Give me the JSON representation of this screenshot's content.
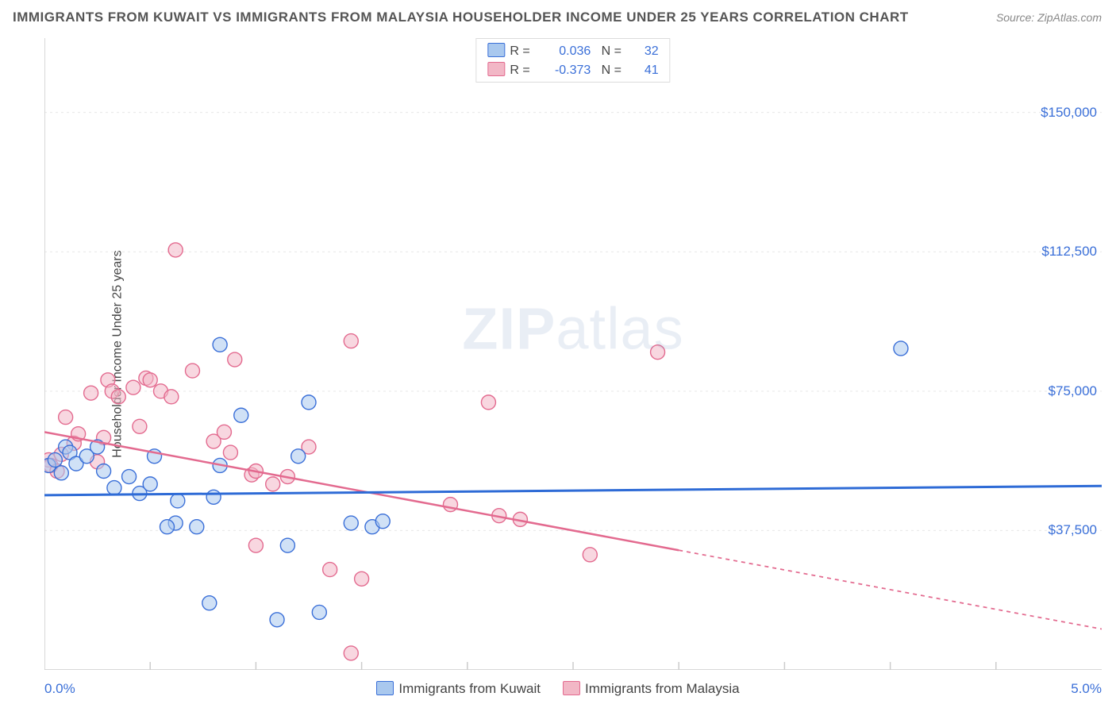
{
  "title": "IMMIGRANTS FROM KUWAIT VS IMMIGRANTS FROM MALAYSIA HOUSEHOLDER INCOME UNDER 25 YEARS CORRELATION CHART",
  "source": "Source: ZipAtlas.com",
  "ylabel": "Householder Income Under 25 years",
  "watermark_zip": "ZIP",
  "watermark_atlas": "atlas",
  "chart": {
    "type": "scatter",
    "background_color": "#ffffff",
    "grid_color": "#e7e7e7",
    "axis_color": "#cccccc",
    "xlim": [
      0.0,
      5.0
    ],
    "ylim": [
      0,
      170000
    ],
    "xtick_label_left": "0.0%",
    "xtick_label_right": "5.0%",
    "xticks_minor": [
      0.5,
      1.0,
      1.5,
      2.0,
      2.5,
      3.0,
      3.5,
      4.0,
      4.5
    ],
    "yticks": [
      {
        "v": 37500,
        "label": "$37,500"
      },
      {
        "v": 75000,
        "label": "$75,000"
      },
      {
        "v": 112500,
        "label": "$112,500"
      },
      {
        "v": 150000,
        "label": "$150,000"
      }
    ],
    "series_a": {
      "name": "Immigrants from Kuwait",
      "fill": "#a9c8ee",
      "stroke": "#3a6fd8",
      "fill_opacity": 0.55,
      "marker_r": 9,
      "R": "0.036",
      "N": "32",
      "trend": {
        "y_at_x0": 47000,
        "y_at_x5": 49500,
        "color": "#2e6bd6",
        "width": 3,
        "solid_to_x": 5.0
      },
      "points": [
        [
          0.02,
          55000
        ],
        [
          0.05,
          56500
        ],
        [
          0.08,
          53000
        ],
        [
          0.1,
          60000
        ],
        [
          0.12,
          58500
        ],
        [
          0.15,
          55500
        ],
        [
          0.2,
          57500
        ],
        [
          0.25,
          60000
        ],
        [
          0.28,
          53500
        ],
        [
          0.33,
          49000
        ],
        [
          0.4,
          52000
        ],
        [
          0.45,
          47500
        ],
        [
          0.5,
          50000
        ],
        [
          0.52,
          57500
        ],
        [
          0.62,
          39500
        ],
        [
          0.63,
          45500
        ],
        [
          0.58,
          38500
        ],
        [
          0.72,
          38500
        ],
        [
          0.78,
          18000
        ],
        [
          0.8,
          46500
        ],
        [
          0.83,
          55000
        ],
        [
          0.83,
          87500
        ],
        [
          0.93,
          68500
        ],
        [
          1.1,
          13500
        ],
        [
          1.15,
          33500
        ],
        [
          1.2,
          57500
        ],
        [
          1.25,
          72000
        ],
        [
          1.3,
          15500
        ],
        [
          1.45,
          39500
        ],
        [
          1.55,
          38500
        ],
        [
          1.6,
          40000
        ],
        [
          4.05,
          86500
        ]
      ]
    },
    "series_b": {
      "name": "Immigrants from Malaysia",
      "fill": "#f2b7c6",
      "stroke": "#e36a8f",
      "fill_opacity": 0.55,
      "marker_r": 9,
      "R": "-0.373",
      "N": "41",
      "trend": {
        "y_at_x0": 64000,
        "y_at_x5": 11000,
        "color": "#e36a8f",
        "width": 2.5,
        "solid_to_x": 3.0
      },
      "points": [
        [
          0.02,
          56500
        ],
        [
          0.03,
          55000
        ],
        [
          0.06,
          53500
        ],
        [
          0.08,
          58000
        ],
        [
          0.1,
          68000
        ],
        [
          0.14,
          61000
        ],
        [
          0.16,
          63500
        ],
        [
          0.22,
          74500
        ],
        [
          0.25,
          56000
        ],
        [
          0.28,
          62500
        ],
        [
          0.3,
          78000
        ],
        [
          0.32,
          75000
        ],
        [
          0.35,
          73500
        ],
        [
          0.42,
          76000
        ],
        [
          0.45,
          65500
        ],
        [
          0.48,
          78500
        ],
        [
          0.55,
          75000
        ],
        [
          0.6,
          73500
        ],
        [
          0.62,
          113000
        ],
        [
          0.7,
          80500
        ],
        [
          0.8,
          61500
        ],
        [
          0.85,
          64000
        ],
        [
          0.88,
          58500
        ],
        [
          0.9,
          83500
        ],
        [
          0.98,
          52500
        ],
        [
          1.0,
          33500
        ],
        [
          1.0,
          53500
        ],
        [
          1.08,
          50000
        ],
        [
          1.15,
          52000
        ],
        [
          1.25,
          60000
        ],
        [
          1.35,
          27000
        ],
        [
          1.45,
          4500
        ],
        [
          1.45,
          88500
        ],
        [
          1.5,
          24500
        ],
        [
          1.92,
          44500
        ],
        [
          2.1,
          72000
        ],
        [
          2.15,
          41500
        ],
        [
          2.25,
          40500
        ],
        [
          2.58,
          31000
        ],
        [
          2.9,
          85500
        ],
        [
          0.5,
          78000
        ]
      ]
    }
  },
  "legend_top_rows": [
    {
      "swatch_fill": "#a9c8ee",
      "swatch_stroke": "#3a6fd8",
      "R": "0.036",
      "N": "32"
    },
    {
      "swatch_fill": "#f2b7c6",
      "swatch_stroke": "#e36a8f",
      "R": "-0.373",
      "N": "41"
    }
  ],
  "legend_bottom": [
    {
      "swatch_fill": "#a9c8ee",
      "swatch_stroke": "#3a6fd8",
      "label": "Immigrants from Kuwait"
    },
    {
      "swatch_fill": "#f2b7c6",
      "swatch_stroke": "#e36a8f",
      "label": "Immigrants from Malaysia"
    }
  ]
}
